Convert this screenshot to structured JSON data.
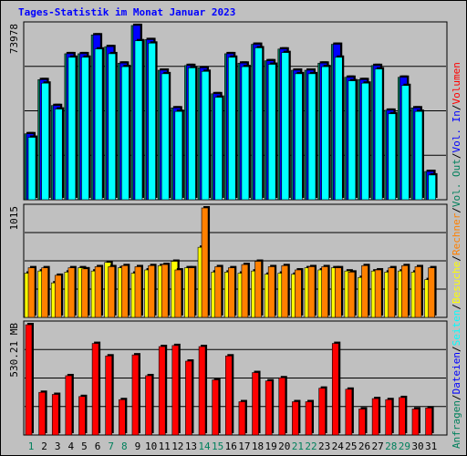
{
  "title": "Tages-Statistik im Monat Januar 2023",
  "colors": {
    "background": "#c0c0c0",
    "anfragen": "#00805c",
    "dateien": "#0000ff",
    "seiten": "#00ffff",
    "besuche": "#ffff00",
    "rechner": "#ff8000",
    "vol_in": "#0000ff",
    "vol_out": "#00805c",
    "volumen": "#ff0000",
    "weekend_label": "#00805c"
  },
  "right_legend": [
    {
      "text": "Anfragen",
      "color": "#00805c"
    },
    {
      "text": "/",
      "color": "#000000"
    },
    {
      "text": "Dateien",
      "color": "#0000ff"
    },
    {
      "text": "/",
      "color": "#000000"
    },
    {
      "text": "Seiten",
      "color": "#00ffff"
    },
    {
      "text": "/",
      "color": "#000000"
    },
    {
      "text": "Besuche",
      "color": "#ffff00"
    },
    {
      "text": "/",
      "color": "#000000"
    },
    {
      "text": "Rechner",
      "color": "#ff8000"
    },
    {
      "text": "/",
      "color": "#000000"
    },
    {
      "text": "Vol. Out",
      "color": "#00805c"
    },
    {
      "text": "/",
      "color": "#000000"
    },
    {
      "text": "Vol. In",
      "color": "#0000ff"
    },
    {
      "text": "/",
      "color": "#000000"
    },
    {
      "text": "Volumen",
      "color": "#ff0000"
    }
  ],
  "chart_data": [
    {
      "type": "bar",
      "y_max_label": "73978",
      "ylim": [
        0,
        73978
      ],
      "categories": [
        "1",
        "2",
        "3",
        "4",
        "5",
        "6",
        "7",
        "8",
        "9",
        "10",
        "11",
        "12",
        "13",
        "14",
        "15",
        "16",
        "17",
        "18",
        "19",
        "20",
        "21",
        "22",
        "23",
        "24",
        "25",
        "26",
        "27",
        "28",
        "29",
        "30",
        "31"
      ],
      "weekend_days": [
        "1",
        "7",
        "8",
        "14",
        "15",
        "21",
        "22",
        "28",
        "29"
      ],
      "series": [
        {
          "name": "Anfragen",
          "values": [
            28000,
            51000,
            40000,
            62000,
            62000,
            70000,
            65000,
            58000,
            74000,
            68000,
            55000,
            39000,
            57000,
            56000,
            45000,
            62000,
            58000,
            66000,
            59000,
            64000,
            55000,
            55000,
            58000,
            66000,
            52000,
            51000,
            57000,
            38000,
            52000,
            39000,
            12000
          ]
        },
        {
          "name": "Dateien",
          "values": [
            28000,
            51000,
            40000,
            62000,
            62000,
            70000,
            65000,
            58000,
            74000,
            68000,
            55000,
            39000,
            57000,
            56000,
            45000,
            62000,
            58000,
            66000,
            59000,
            64000,
            55000,
            55000,
            58000,
            66000,
            52000,
            51000,
            57000,
            38000,
            52000,
            39000,
            12000
          ]
        },
        {
          "name": "Seiten",
          "values": [
            26500,
            49500,
            38500,
            60500,
            60500,
            64000,
            62000,
            56500,
            67500,
            66500,
            53500,
            37500,
            56000,
            54500,
            43500,
            60500,
            56500,
            64500,
            57500,
            62500,
            53500,
            53500,
            56500,
            60500,
            50500,
            49500,
            55500,
            36500,
            48500,
            37500,
            10500
          ]
        }
      ]
    },
    {
      "type": "bar",
      "y_max_label": "1015",
      "ylim": [
        0,
        1015
      ],
      "categories": [
        "1",
        "2",
        "3",
        "4",
        "5",
        "6",
        "7",
        "8",
        "9",
        "10",
        "11",
        "12",
        "13",
        "14",
        "15",
        "16",
        "17",
        "18",
        "19",
        "20",
        "21",
        "22",
        "23",
        "24",
        "25",
        "26",
        "27",
        "28",
        "29",
        "30",
        "31"
      ],
      "series": [
        {
          "name": "Besuche",
          "values": [
            410,
            430,
            320,
            420,
            460,
            430,
            510,
            460,
            410,
            440,
            480,
            520,
            460,
            650,
            420,
            420,
            410,
            430,
            400,
            410,
            400,
            460,
            440,
            460,
            430,
            370,
            430,
            420,
            430,
            420,
            350
          ]
        },
        {
          "name": "Rechner",
          "values": [
            460,
            460,
            390,
            460,
            450,
            470,
            470,
            480,
            470,
            480,
            490,
            440,
            460,
            1015,
            470,
            460,
            490,
            520,
            470,
            480,
            440,
            470,
            470,
            460,
            420,
            480,
            440,
            460,
            480,
            470,
            460
          ]
        }
      ]
    },
    {
      "type": "bar",
      "y_max_label": "530.21 MB",
      "ylim": [
        0,
        530.21
      ],
      "categories": [
        "1",
        "2",
        "3",
        "4",
        "5",
        "6",
        "7",
        "8",
        "9",
        "10",
        "11",
        "12",
        "13",
        "14",
        "15",
        "16",
        "17",
        "18",
        "19",
        "20",
        "21",
        "22",
        "23",
        "24",
        "25",
        "26",
        "27",
        "28",
        "29",
        "30",
        "31"
      ],
      "series": [
        {
          "name": "Volumen",
          "values": [
            530,
            205,
            195,
            285,
            185,
            440,
            380,
            170,
            385,
            285,
            425,
            430,
            355,
            425,
            265,
            380,
            160,
            300,
            260,
            275,
            160,
            160,
            225,
            440,
            220,
            125,
            175,
            170,
            180,
            125,
            130
          ]
        }
      ]
    }
  ]
}
